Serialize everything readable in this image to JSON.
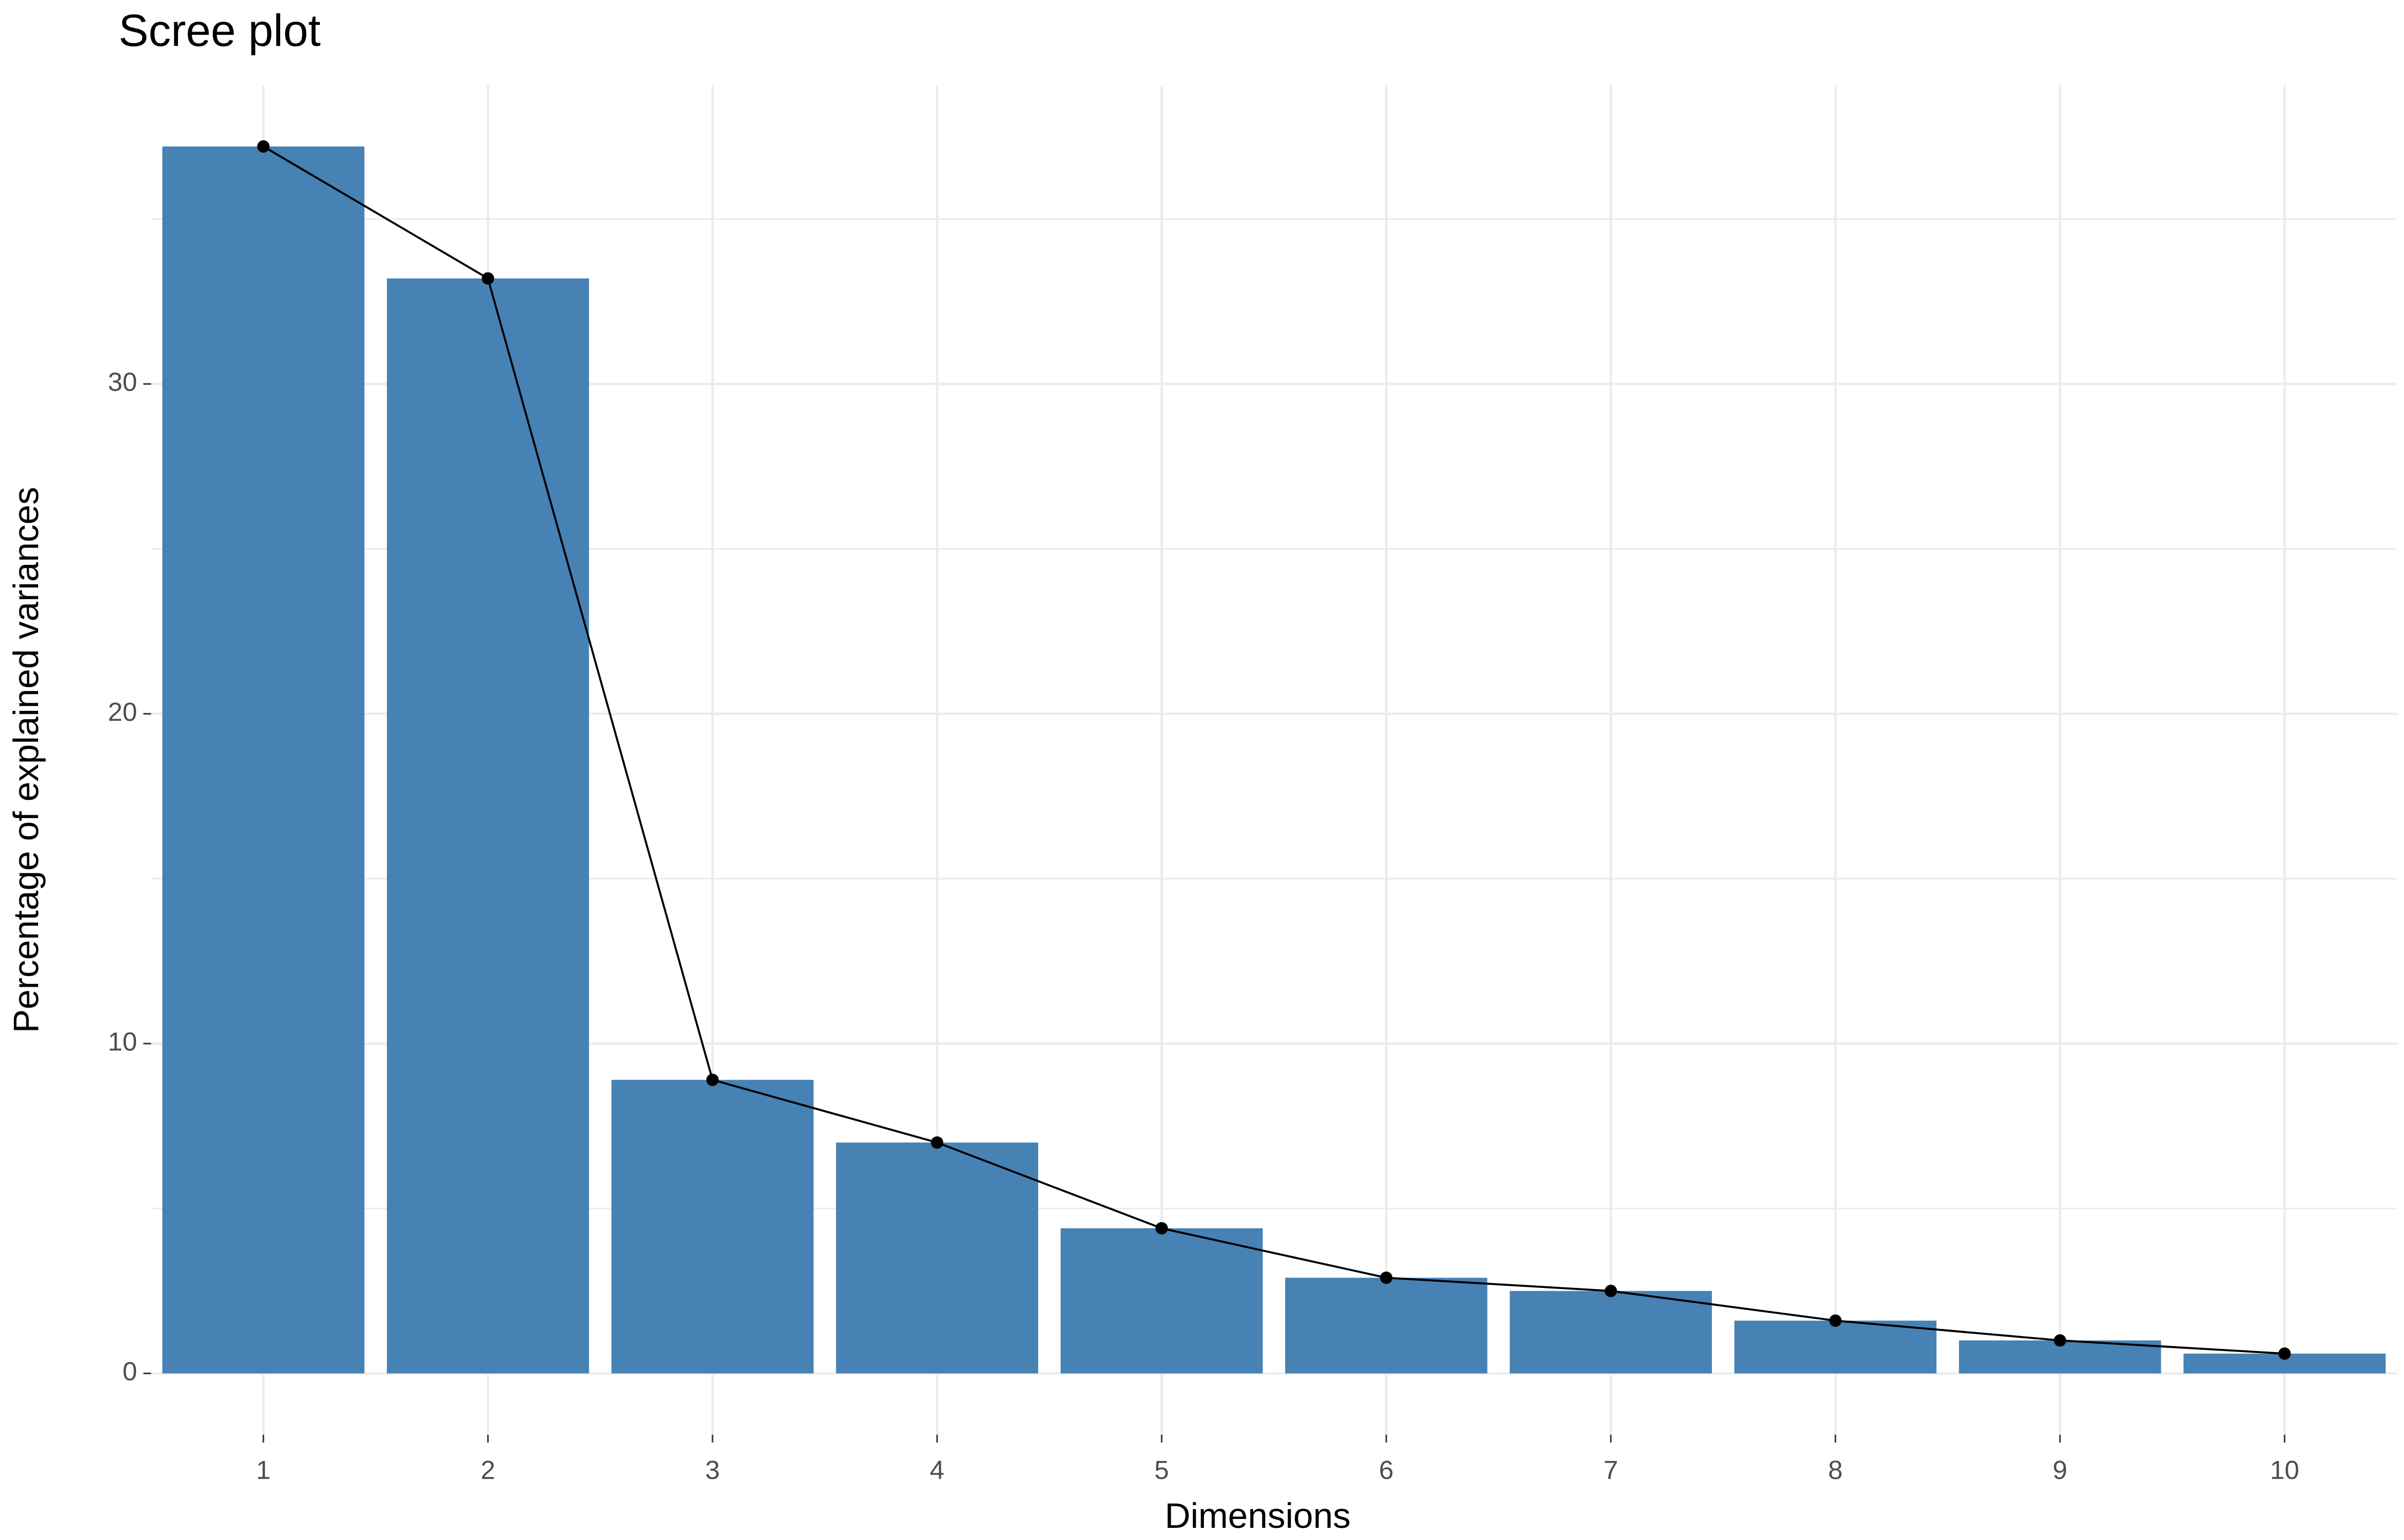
{
  "chart_data": {
    "type": "bar",
    "title": "Scree plot",
    "x_label": "Dimensions",
    "y_label": "Percentage of explained variances",
    "categories": [
      "1",
      "2",
      "3",
      "4",
      "5",
      "6",
      "7",
      "8",
      "9",
      "10"
    ],
    "values": [
      37.2,
      33.2,
      8.9,
      7.0,
      4.4,
      2.9,
      2.5,
      1.6,
      1.0,
      0.6
    ],
    "color": "#4682b4",
    "line_color": "#000000",
    "overlay_line": true,
    "ylim": [
      -1.86,
      39.06
    ],
    "yticks": [
      0,
      10,
      20,
      30
    ],
    "grid": true,
    "minor_grid": true
  }
}
